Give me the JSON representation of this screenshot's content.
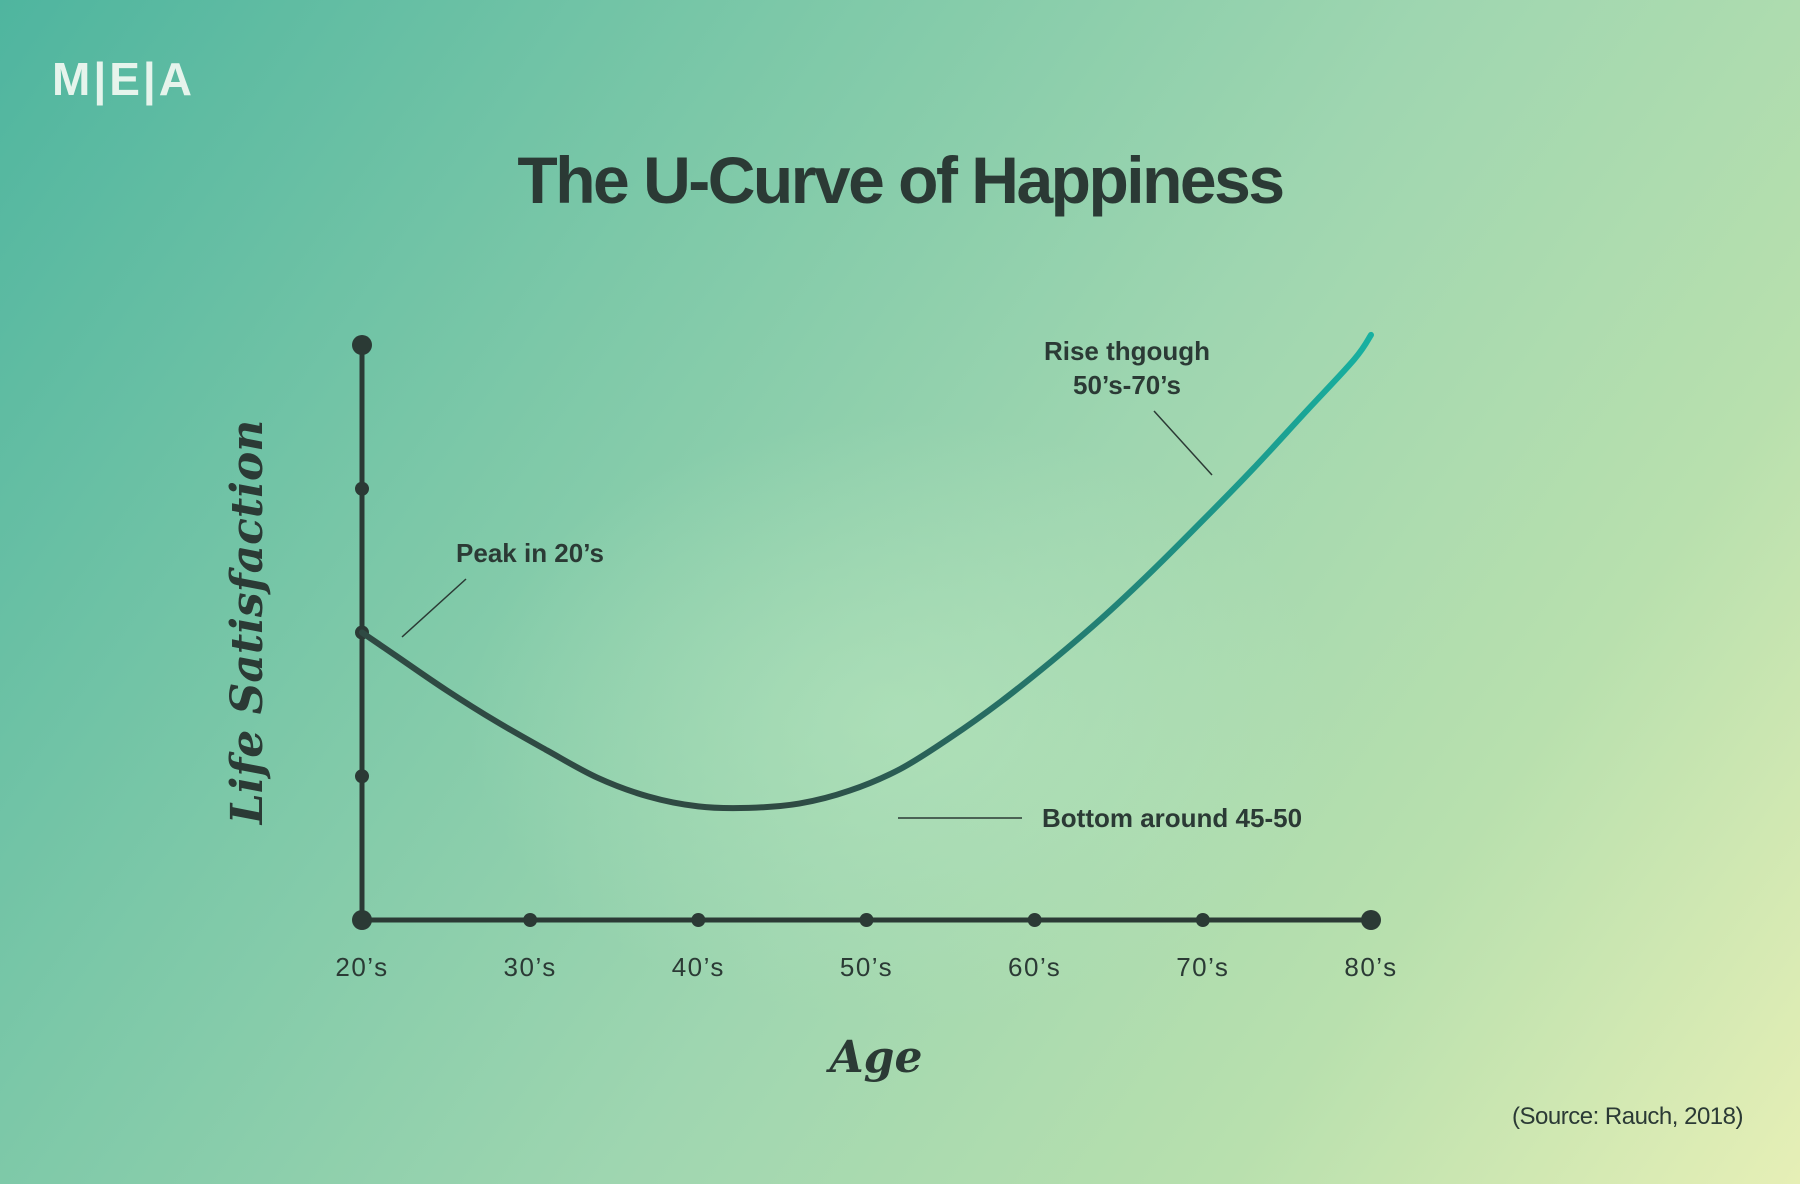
{
  "brand": {
    "logo_text": "M|E|A"
  },
  "header": {
    "title": "The U-Curve of Happiness"
  },
  "footer": {
    "source": "(Source: Rauch, 2018)"
  },
  "colors": {
    "ink": "#2b3a35",
    "curve_start": "#2f4a43",
    "curve_end": "#17b3a3"
  },
  "chart_data": {
    "type": "line",
    "title": "The U-Curve of Happiness",
    "xlabel": "Age",
    "ylabel": "Life Satisfaction",
    "categories": [
      "20’s",
      "30’s",
      "40’s",
      "50’s",
      "60’s",
      "70’s",
      "80’s"
    ],
    "x_numeric": [
      20,
      30,
      40,
      50,
      60,
      70,
      80
    ],
    "y_ticks": [
      0,
      1,
      2,
      3,
      4
    ],
    "xlim": [
      20,
      80
    ],
    "ylim": [
      0,
      4
    ],
    "grid": false,
    "series": [
      {
        "points": [
          [
            20,
            2.0
          ],
          [
            22,
            1.84
          ],
          [
            25,
            1.6
          ],
          [
            28,
            1.38
          ],
          [
            31,
            1.18
          ],
          [
            34,
            0.99
          ],
          [
            37,
            0.86
          ],
          [
            40,
            0.79
          ],
          [
            43,
            0.78
          ],
          [
            46,
            0.81
          ],
          [
            49,
            0.9
          ],
          [
            52,
            1.05
          ],
          [
            55,
            1.27
          ],
          [
            58,
            1.52
          ],
          [
            61,
            1.8
          ],
          [
            64,
            2.1
          ],
          [
            67,
            2.43
          ],
          [
            70,
            2.78
          ],
          [
            73,
            3.14
          ],
          [
            76,
            3.52
          ],
          [
            79,
            3.9
          ],
          [
            80,
            4.07
          ]
        ]
      }
    ],
    "annotations": [
      {
        "lines": [
          "Peak in 20’s"
        ],
        "x": 22.3,
        "y": 1.94
      },
      {
        "lines": [
          "Bottom around 45-50"
        ],
        "x": 51.5,
        "y": 0.71
      },
      {
        "lines": [
          "Rise thgough",
          "50’s-70’s"
        ],
        "x": 69.5,
        "y": 3.08
      }
    ]
  }
}
